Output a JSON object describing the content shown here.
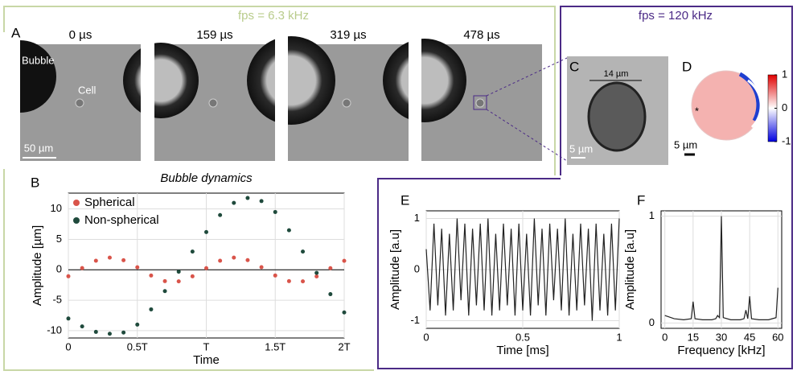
{
  "panel_labels": [
    "A",
    "B",
    "C",
    "D",
    "E",
    "F"
  ],
  "fps_left": "fps = 6.3 kHz",
  "fps_right": "fps = 120 kHz",
  "frames": [
    "0 µs",
    "159 µs",
    "319 µs",
    "478 µs"
  ],
  "annotations": {
    "bubble": "Bubble",
    "cell": "Cell",
    "scale_a": "50 µm",
    "diameter_c": "14 µm",
    "scale_c": "5 µm",
    "scale_d": "5 µm",
    "marker_d": "*"
  },
  "colorbar": {
    "lim": [
      -1,
      1
    ],
    "ticks": [
      1,
      0,
      -1
    ]
  },
  "chart_data": [
    {
      "type": "scatter",
      "title": "Bubble dynamics",
      "xlabel": "Time",
      "ylabel": "Amplitude [µm]",
      "grid": true,
      "x": [
        0,
        0.1,
        0.2,
        0.3,
        0.4,
        0.5,
        0.6,
        0.7,
        0.8,
        0.9,
        1.0,
        1.1,
        1.2,
        1.3,
        1.4,
        1.5,
        1.6,
        1.7,
        1.8,
        1.9,
        2.0
      ],
      "series": [
        {
          "name": "Spherical",
          "color": "#d9544a",
          "values": [
            -1.06,
            0.28,
            1.49,
            2.0,
            1.58,
            0.42,
            -0.94,
            -1.86,
            -1.9,
            -1.07,
            0.27,
            1.49,
            2.0,
            1.59,
            0.43,
            -0.93,
            -1.86,
            -1.9,
            -1.08,
            0.27,
            1.48
          ]
        },
        {
          "name": "Non-spherical",
          "color": "#1f4a3c",
          "values": [
            -8,
            -9.3,
            -10.2,
            -10.5,
            -10.3,
            -9,
            -6.5,
            -3.5,
            -0.3,
            3,
            6.2,
            9,
            11,
            11.8,
            11.3,
            9.5,
            6.5,
            3,
            -0.5,
            -4,
            -7
          ]
        }
      ],
      "xlim": [
        0,
        2
      ],
      "xticks": [
        0,
        {
          "value": 0.5,
          "label": "0.5T"
        },
        {
          "value": 1,
          "label": "T"
        },
        {
          "value": 1.5,
          "label": "1.5T"
        },
        {
          "value": 2,
          "label": "2T"
        }
      ],
      "ylim": [
        -11.2,
        12.6
      ],
      "yticks": [
        -10,
        -5,
        0,
        5,
        10
      ]
    },
    {
      "type": "line",
      "xlabel": "Time [ms]",
      "ylabel": "Amplitude [a.u]",
      "grid": true,
      "color": "#222222",
      "x": [
        0,
        0.02,
        0.04,
        0.06,
        0.08,
        0.1,
        0.12,
        0.14,
        0.16,
        0.18,
        0.2,
        0.22,
        0.24,
        0.26,
        0.28,
        0.3,
        0.32,
        0.34,
        0.36,
        0.38,
        0.4,
        0.42,
        0.44,
        0.46,
        0.48,
        0.5,
        0.52,
        0.54,
        0.56,
        0.58,
        0.6,
        0.62,
        0.64,
        0.66,
        0.68,
        0.7,
        0.72,
        0.74,
        0.76,
        0.78,
        0.8,
        0.82,
        0.84,
        0.86,
        0.88,
        0.9,
        0.92,
        0.94,
        0.96,
        0.98,
        1.0
      ],
      "values": [
        0.4,
        -0.8,
        0.9,
        -0.7,
        0.8,
        -0.9,
        0.7,
        -0.8,
        1.0,
        -0.6,
        0.9,
        -0.9,
        0.8,
        -0.7,
        0.9,
        -0.8,
        1.0,
        -0.9,
        0.7,
        -0.8,
        0.9,
        -0.7,
        0.8,
        -0.9,
        0.9,
        -0.8,
        0.7,
        -0.9,
        1.0,
        -0.7,
        0.8,
        -0.9,
        0.9,
        -0.6,
        0.8,
        -0.8,
        1.0,
        -0.9,
        0.7,
        -0.8,
        0.9,
        -0.7,
        0.8,
        -1.0,
        0.9,
        -0.8,
        0.7,
        -0.9,
        0.9,
        -0.8,
        1.0
      ],
      "xlim": [
        0,
        1
      ],
      "xticks": [
        0,
        0.5,
        1
      ],
      "ylim": [
        -1.15,
        1.15
      ],
      "yticks": [
        -1,
        0,
        1
      ]
    },
    {
      "type": "line",
      "xlabel": "Frequency [kHz]",
      "ylabel": "Amplitude [a.u]",
      "grid": true,
      "color": "#222222",
      "x": [
        0,
        5,
        10,
        14,
        15,
        16,
        20,
        25,
        27,
        28,
        29,
        30,
        31,
        35,
        40,
        42,
        43,
        44,
        45,
        46,
        50,
        55,
        59,
        60
      ],
      "values": [
        0.07,
        0.04,
        0.03,
        0.04,
        0.2,
        0.04,
        0.03,
        0.03,
        0.04,
        0.07,
        0.05,
        1.0,
        0.05,
        0.03,
        0.03,
        0.04,
        0.12,
        0.04,
        0.25,
        0.04,
        0.03,
        0.03,
        0.05,
        0.33
      ],
      "xlim": [
        -2,
        62
      ],
      "xticks": [
        0,
        15,
        30,
        45,
        60
      ],
      "ylim": [
        -0.05,
        1.05
      ],
      "yticks": [
        0,
        1
      ]
    }
  ]
}
